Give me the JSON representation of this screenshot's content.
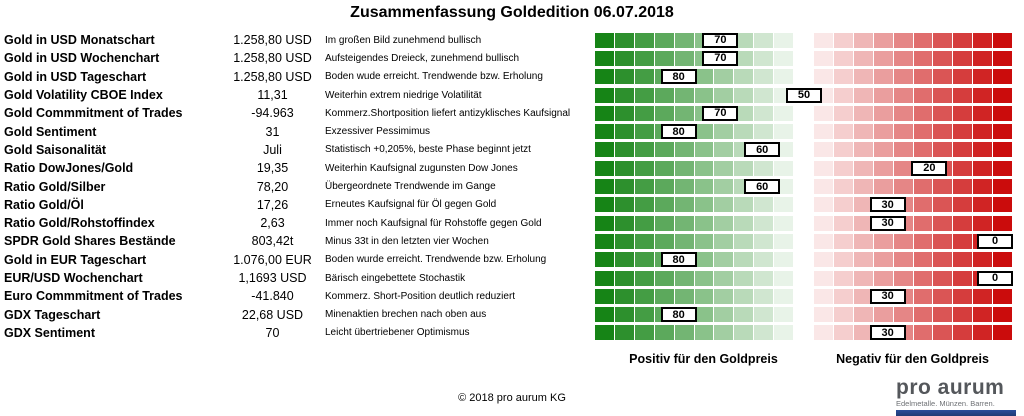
{
  "title": "Zusammenfassung Goldedition 06.07.2018",
  "rows": [
    {
      "label": "Gold in USD Monatschart",
      "value": "1.258,80 USD",
      "description": "Im großen Bild zunehmend bullisch",
      "score": 70
    },
    {
      "label": "Gold in USD Wochenchart",
      "value": "1.258,80 USD",
      "description": "Aufsteigendes Dreieck, zunehmend bullisch",
      "score": 70
    },
    {
      "label": "Gold in USD Tageschart",
      "value": "1.258,80 USD",
      "description": "Boden wude erreicht. Trendwende bzw. Erholung",
      "score": 80
    },
    {
      "label": "Gold Volatility CBOE Index",
      "value": "11,31",
      "description": "Weiterhin extrem niedrige Volatilität",
      "score": 50
    },
    {
      "label": "Gold Commmitment of Trades",
      "value": "-94.963",
      "description": "Kommerz.Shortposition liefert antizyklisches Kaufsignal",
      "score": 70
    },
    {
      "label": "Gold Sentiment",
      "value": "31",
      "description": "Exzessiver Pessimimus",
      "score": 80
    },
    {
      "label": "Gold Saisonalität",
      "value": "Juli",
      "description": "Statistisch +0,205%, beste Phase beginnt jetzt",
      "score": 60
    },
    {
      "label": "Ratio DowJones/Gold",
      "value": "19,35",
      "description": "Weiterhin Kaufsignal zugunsten Dow Jones",
      "score": 20
    },
    {
      "label": "Ratio Gold/Silber",
      "value": "78,20",
      "description": "Übergeordnete Trendwende im Gange",
      "score": 60
    },
    {
      "label": "Ratio Gold/Öl",
      "value": "17,26",
      "description": "Erneutes Kaufsignal für Öl gegen Gold",
      "score": 30
    },
    {
      "label": "Ratio Gold/Rohstoffindex",
      "value": "2,63",
      "description": "Immer noch Kaufsignal für Rohstoffe gegen Gold",
      "score": 30
    },
    {
      "label": "SPDR Gold Shares Bestände",
      "value": "803,42t",
      "description": "Minus 33t in den letzten vier Wochen",
      "score": 0
    },
    {
      "label": "Gold in EUR Tageschart",
      "value": "1.076,00 EUR",
      "description": "Boden wurde erreicht. Trendwende bzw. Erholung",
      "score": 80
    },
    {
      "label": "EUR/USD Wochenchart",
      "value": "1,1693 USD",
      "description": "Bärisch eingebettete Stochastik",
      "score": 0
    },
    {
      "label": "Euro Commmitment of Trades",
      "value": "-41.840",
      "description": "Kommerz. Short-Position deutlich reduziert",
      "score": 30
    },
    {
      "label": "GDX Tageschart",
      "value": "22,68 USD",
      "description": "Minenaktien brechen nach oben aus",
      "score": 80
    },
    {
      "label": "GDX Sentiment",
      "value": "70",
      "description": "Leicht übertriebener Optimismus",
      "score": 30
    }
  ],
  "bar": {
    "segments": 21,
    "left_color": "#0a7e0a",
    "mid_color": "#ffffff",
    "right_color": "#c80000"
  },
  "legend": {
    "positive": "Positiv für den Goldpreis",
    "negative": "Negativ für den Goldpreis"
  },
  "footer": {
    "copyright": "© 2018 pro aurum KG"
  },
  "logo": {
    "name": "pro aurum",
    "tagline": "Edelmetalle. Münzen. Barren.",
    "bar_color": "#2a4d9b"
  },
  "chart_data": {
    "type": "heatmap",
    "title": "Zusammenfassung Goldedition 06.07.2018",
    "categories": [
      "Gold in USD Monatschart",
      "Gold in USD Wochenchart",
      "Gold in USD Tageschart",
      "Gold Volatility CBOE Index",
      "Gold Commmitment of Trades",
      "Gold Sentiment",
      "Gold Saisonalität",
      "Ratio DowJones/Gold",
      "Ratio Gold/Silber",
      "Ratio Gold/Öl",
      "Ratio Gold/Rohstoffindex",
      "SPDR Gold Shares Bestände",
      "Gold in EUR Tageschart",
      "EUR/USD Wochenchart",
      "Euro Commmitment of Trades",
      "GDX Tageschart",
      "GDX Sentiment"
    ],
    "values": [
      70,
      70,
      80,
      50,
      70,
      80,
      60,
      20,
      60,
      30,
      30,
      0,
      80,
      0,
      30,
      80,
      30
    ],
    "scale": {
      "left_end": "100 = Positiv für den Goldpreis (grün)",
      "right_end": "0 = Negativ für den Goldpreis (rot)",
      "marker_position": "(100 - score)% entlang des Farbbalkens"
    },
    "legend_position": "bottom"
  }
}
